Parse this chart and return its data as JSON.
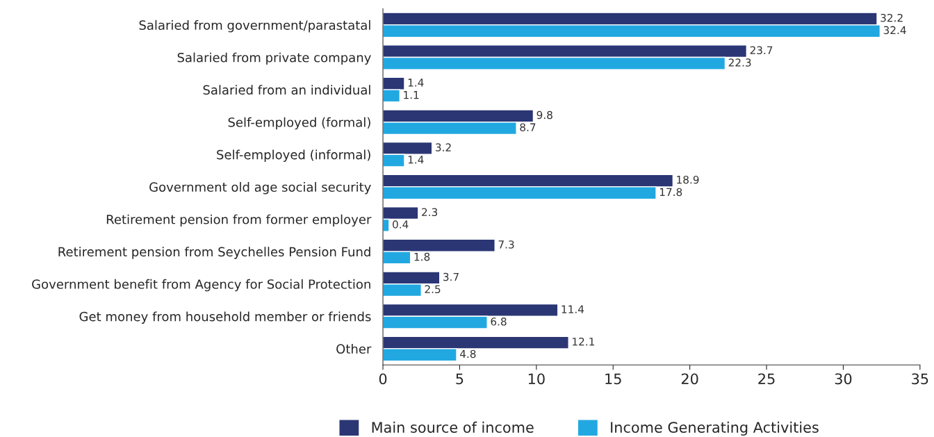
{
  "chart_data": {
    "type": "bar",
    "orientation": "horizontal",
    "categories": [
      "Salaried from government/parastatal",
      "Salaried from private company",
      "Salaried from an individual",
      "Self-employed (formal)",
      "Self-employed (informal)",
      "Government old age social security",
      "Retirement pension from former employer",
      "Retirement pension from Seychelles Pension Fund",
      "Government benefit from Agency for Social Protection",
      "Get money from household member or friends",
      "Other"
    ],
    "series": [
      {
        "name": "Main source of income",
        "color": "#2b3674",
        "values": [
          32.2,
          23.7,
          1.4,
          9.8,
          3.2,
          18.9,
          2.3,
          7.3,
          3.7,
          11.4,
          12.1
        ]
      },
      {
        "name": "Income Generating Activities",
        "color": "#22a8e1",
        "values": [
          32.4,
          22.3,
          1.1,
          8.7,
          1.4,
          17.8,
          0.4,
          1.8,
          2.5,
          6.8,
          4.8
        ]
      }
    ],
    "xlim": [
      0,
      35
    ],
    "xticks": [
      0,
      5,
      10,
      15,
      20,
      25,
      30,
      35
    ],
    "data_labels": true,
    "grid": false,
    "legend": "bottom"
  }
}
